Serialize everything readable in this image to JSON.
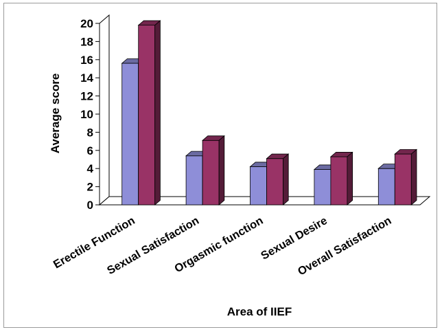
{
  "chart_data": {
    "type": "bar",
    "categories": [
      "Erectile Function",
      "Sexual Satisfaction",
      "Orgasmic function",
      "Sexual Desire",
      "Overall Satisfaction"
    ],
    "series": [
      {
        "values": [
          15.6,
          5.4,
          4.2,
          3.9,
          4.0
        ],
        "color": "#8e8ed8"
      },
      {
        "values": [
          19.8,
          7.1,
          5.1,
          5.3,
          5.6
        ],
        "color": "#993366"
      }
    ],
    "title": "",
    "xlabel": "Area of IIEF",
    "ylabel": "Average score",
    "ylim": [
      0,
      20
    ],
    "yticks": [
      "0",
      "2",
      "4",
      "6",
      "8",
      "10",
      "12",
      "14",
      "16",
      "18",
      "20"
    ],
    "grid": false,
    "legend": "none",
    "style": "3d-clustered-column"
  }
}
